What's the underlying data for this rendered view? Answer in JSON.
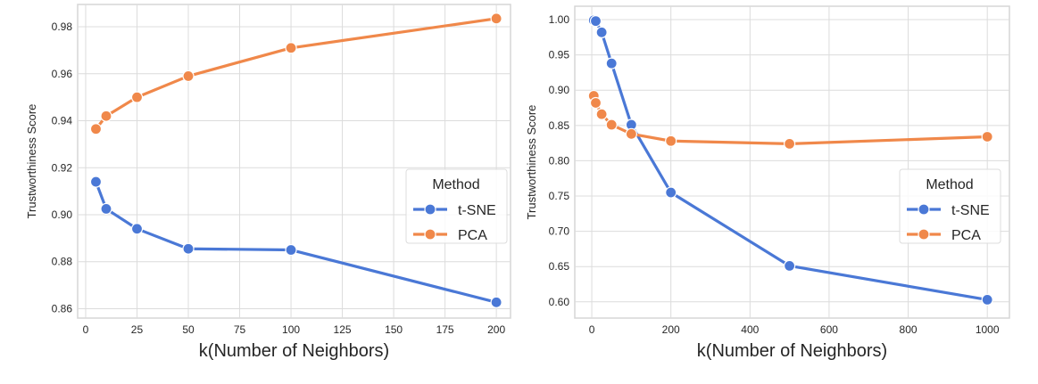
{
  "chart_data": [
    {
      "type": "line",
      "xlabel": "k(Number of Neighbors)",
      "ylabel": "Trustworthiness Score",
      "xlim": [
        -3.9,
        206.9
      ],
      "ylim": [
        0.856,
        0.9895
      ],
      "xticks": [
        0,
        25,
        50,
        75,
        100,
        125,
        150,
        175,
        200
      ],
      "xtick_labels": [
        "0",
        "25",
        "50",
        "75",
        "100",
        "125",
        "150",
        "175",
        "200"
      ],
      "yticks": [
        0.86,
        0.88,
        0.9,
        0.92,
        0.94,
        0.96,
        0.98
      ],
      "ytick_labels": [
        "0.86",
        "0.88",
        "0.90",
        "0.92",
        "0.94",
        "0.96",
        "0.98"
      ],
      "grid": true,
      "legend": {
        "title": "Method",
        "placement": "right"
      },
      "x": [
        5,
        10,
        25,
        50,
        100,
        200
      ],
      "series": [
        {
          "name": "t-SNE",
          "color": "#4a78d6",
          "values": [
            0.914,
            0.9025,
            0.894,
            0.8855,
            0.885,
            0.8627
          ]
        },
        {
          "name": "PCA",
          "color": "#f0884a",
          "values": [
            0.9365,
            0.942,
            0.95,
            0.959,
            0.971,
            0.9835
          ]
        }
      ]
    },
    {
      "type": "line",
      "xlabel": "k(Number of Neighbors)",
      "ylabel": "Trustworthiness Score",
      "xlim": [
        -43,
        1056
      ],
      "ylim": [
        0.577,
        1.019
      ],
      "xticks": [
        0,
        200,
        400,
        600,
        800,
        1000
      ],
      "xtick_labels": [
        "0",
        "200",
        "400",
        "600",
        "800",
        "1000"
      ],
      "yticks": [
        0.6,
        0.65,
        0.7,
        0.75,
        0.8,
        0.85,
        0.9,
        0.95,
        1.0
      ],
      "ytick_labels": [
        "0.60",
        "0.65",
        "0.70",
        "0.75",
        "0.80",
        "0.85",
        "0.90",
        "0.95",
        "1.00"
      ],
      "grid": true,
      "legend": {
        "title": "Method",
        "placement": "right"
      },
      "x": [
        5,
        10,
        25,
        50,
        100,
        200,
        500,
        1000
      ],
      "series": [
        {
          "name": "t-SNE",
          "color": "#4a78d6",
          "values": [
            0.999,
            0.998,
            0.982,
            0.938,
            0.851,
            0.755,
            0.651,
            0.603
          ]
        },
        {
          "name": "PCA",
          "color": "#f0884a",
          "values": [
            0.892,
            0.882,
            0.866,
            0.851,
            0.838,
            0.828,
            0.824,
            0.834
          ]
        }
      ]
    }
  ]
}
